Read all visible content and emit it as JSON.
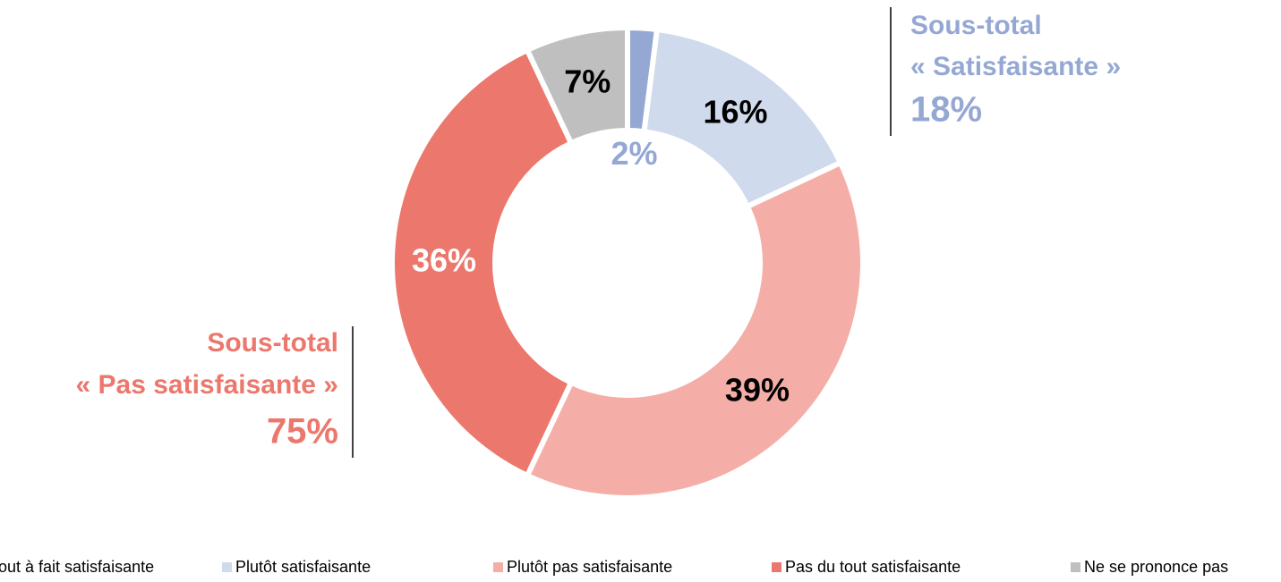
{
  "chart_data": {
    "type": "donut",
    "categories": [
      "Tout à fait satisfaisante",
      "Plutôt satisfaisante",
      "Plutôt pas satisfaisante",
      "Pas du tout satisfaisante",
      "Ne se prononce pas"
    ],
    "values": [
      2,
      16,
      39,
      36,
      7
    ],
    "value_labels": [
      "2%",
      "16%",
      "39%",
      "36%",
      "7%"
    ],
    "colors": [
      "#95a8d4",
      "#d0daed",
      "#f4aea7",
      "#ec776c",
      "#bfbfbf"
    ],
    "label_colors": [
      "#95a8d4",
      "#000000",
      "#000000",
      "#ffffff",
      "#000000"
    ],
    "legend": "bottom",
    "annotations": [
      {
        "lines": [
          "Sous-total",
          "« Satisfaisante »",
          "18%"
        ],
        "color": "#95a8d4"
      },
      {
        "lines": [
          "Sous-total",
          "« Pas satisfaisante »",
          "75%"
        ],
        "color": "#ec776c"
      }
    ]
  }
}
